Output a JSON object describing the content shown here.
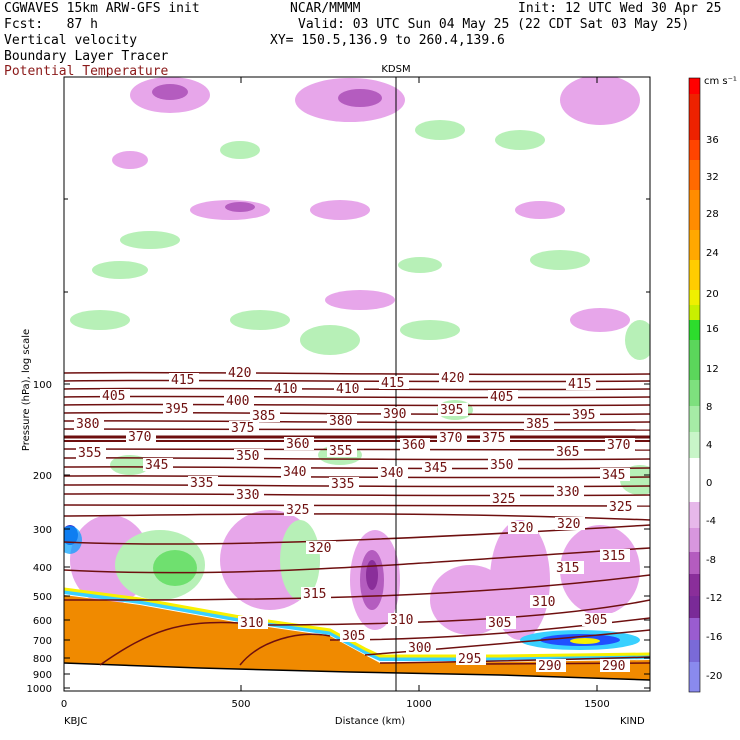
{
  "header": {
    "model": "CGWAVES 15km ARW-GFS init",
    "org": "NCAR/MMMM",
    "init": "Init: 12 UTC Wed 30 Apr 25",
    "fcst": "Fcst:   87 h",
    "valid": "Valid: 03 UTC Sun 04 May 25 (22 CDT Sat 03 May 25)",
    "field1": "Vertical velocity",
    "field2": "Boundary Layer Tracer",
    "field3": "Potential Temperature",
    "xy": "XY= 150.5,136.9 to 260.4,139.6",
    "station": "KDSM"
  },
  "colors": {
    "contour": "#6e0f0f",
    "terrain": "#f08a00",
    "field3_text": "#8b1a1a"
  },
  "chart_data": {
    "type": "cross-section",
    "xlabel": "Distance (km)",
    "ylabel": "Pressure (hPa), log scale",
    "xlim": [
      0,
      1650
    ],
    "ylim": [
      1100,
      10
    ],
    "y_log": true,
    "x_ticks": [
      "0",
      "500",
      "1000",
      "1500"
    ],
    "y_ticks": [
      "100",
      "200",
      "300",
      "400",
      "500",
      "600",
      "700",
      "800",
      "900",
      "1000"
    ],
    "left_end": "KBJC",
    "right_end": "KIND",
    "marker_x_km": 935,
    "colorbar": {
      "units": "cm s⁻¹",
      "labels": [
        "36",
        "32",
        "28",
        "24",
        "20",
        "16",
        "12",
        "8",
        "4",
        "0",
        "-4",
        "-8",
        "-12",
        "-16",
        "-20"
      ]
    },
    "theta_contours": [
      "420",
      "415",
      "410",
      "405",
      "400",
      "395",
      "390",
      "385",
      "380",
      "375",
      "370",
      "365",
      "360",
      "355",
      "350",
      "345",
      "340",
      "335",
      "330",
      "325",
      "320",
      "315",
      "310",
      "305",
      "300",
      "295",
      "290"
    ],
    "terrain_profile": [
      {
        "x": 0,
        "p": 490
      },
      {
        "x": 250,
        "p": 560
      },
      {
        "x": 500,
        "p": 640
      },
      {
        "x": 700,
        "p": 720
      },
      {
        "x": 900,
        "p": 800
      },
      {
        "x": 1200,
        "p": 810
      },
      {
        "x": 1400,
        "p": 820
      },
      {
        "x": 1650,
        "p": 820
      }
    ]
  }
}
